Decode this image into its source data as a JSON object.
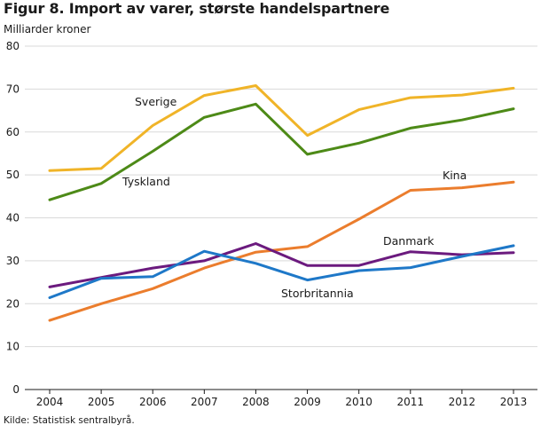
{
  "title": "Figur 8. Import av varer, største handelspartnere",
  "unit": "Milliarder kroner",
  "source": "Kilde: Statistisk sentralbyrå.",
  "chart_data": {
    "type": "line",
    "x": [
      "2004",
      "2005",
      "2006",
      "2007",
      "2008",
      "2009",
      "2010",
      "2011",
      "2012",
      "2013"
    ],
    "ylim": [
      0,
      80
    ],
    "yticks": [
      0,
      10,
      20,
      30,
      40,
      50,
      60,
      70,
      80
    ],
    "grid": true,
    "series": [
      {
        "name": "Sverige",
        "color": "#f0b428",
        "values": [
          51.0,
          51.5,
          61.5,
          68.5,
          70.8,
          59.2,
          65.2,
          68.0,
          68.6,
          70.2
        ]
      },
      {
        "name": "Tyskland",
        "color": "#4d8a17",
        "values": [
          44.2,
          48.0,
          55.5,
          63.4,
          66.5,
          54.8,
          57.4,
          60.9,
          62.8,
          65.4
        ]
      },
      {
        "name": "Kina",
        "color": "#eb7d2d",
        "values": [
          16.1,
          20.0,
          23.5,
          28.3,
          32.0,
          33.3,
          39.7,
          46.4,
          47.0,
          48.3
        ]
      },
      {
        "name": "Danmark",
        "color": "#6b1a7e",
        "values": [
          23.9,
          26.1,
          28.3,
          30.0,
          34.0,
          28.9,
          28.9,
          32.1,
          31.4,
          31.9
        ]
      },
      {
        "name": "Storbritannia",
        "color": "#1e78c8",
        "values": [
          21.4,
          25.9,
          26.3,
          32.2,
          29.4,
          25.5,
          27.7,
          28.4,
          31.0,
          33.5
        ]
      }
    ]
  }
}
